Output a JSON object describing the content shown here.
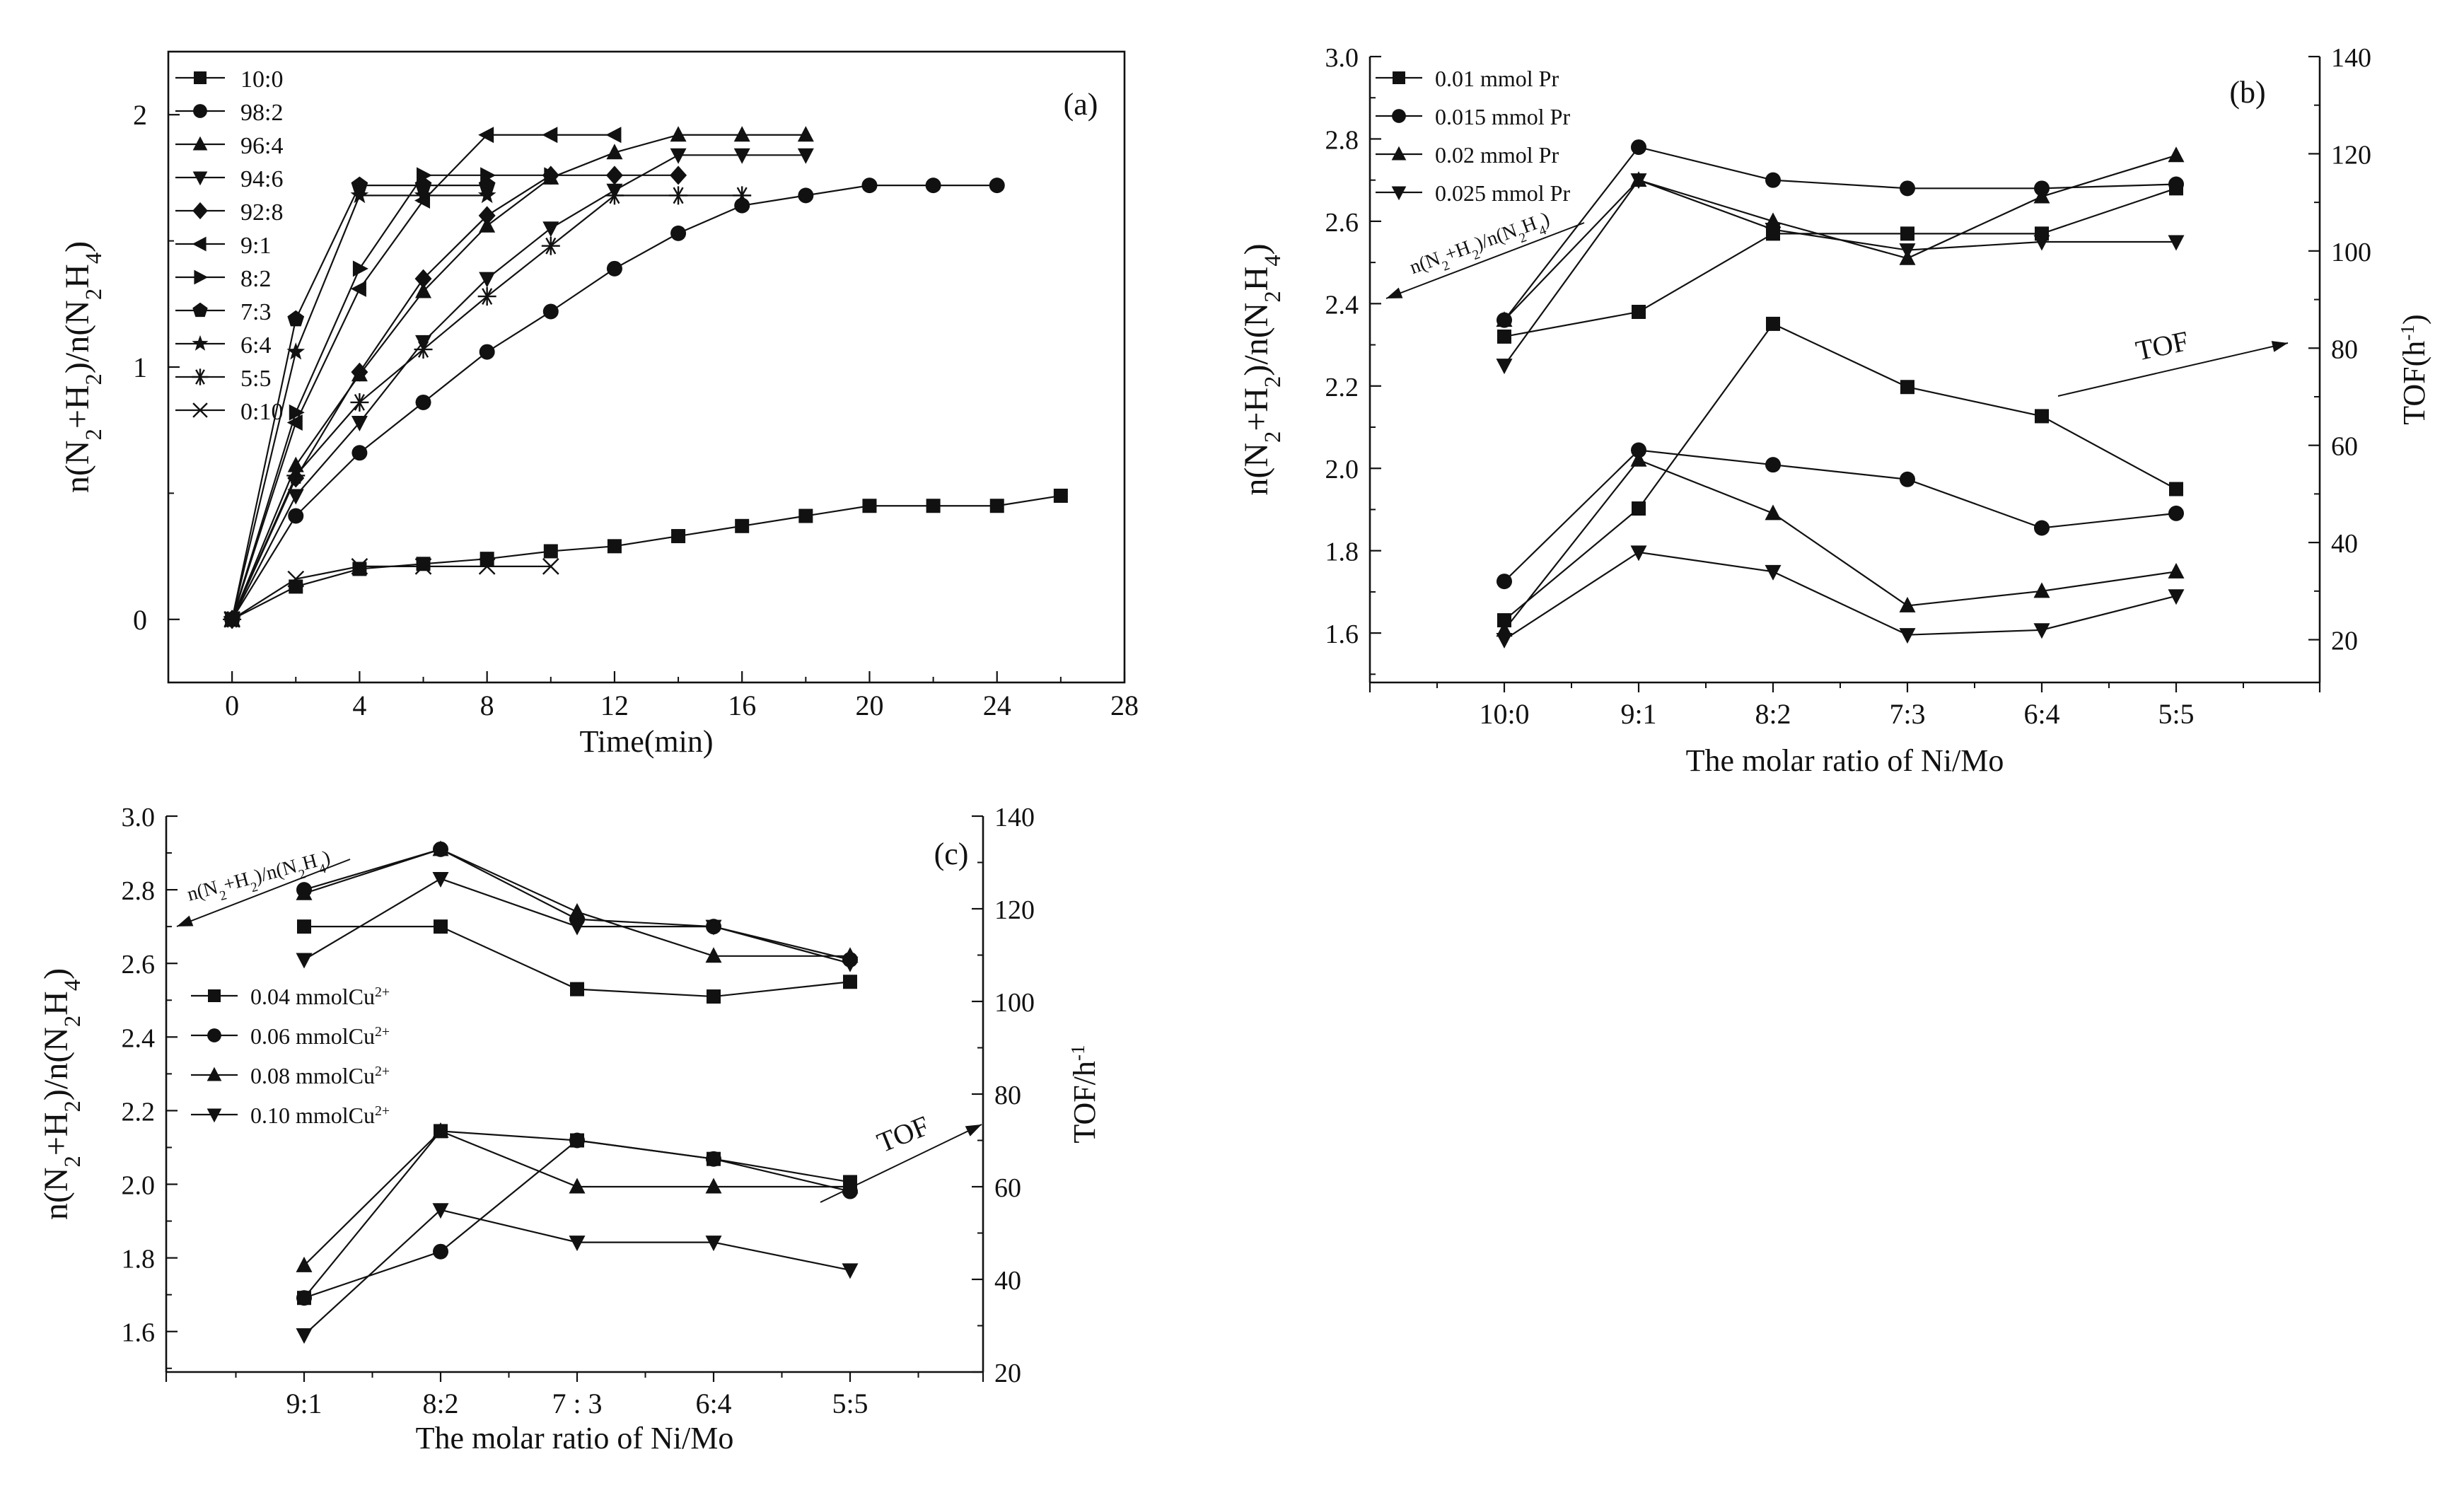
{
  "chart_data": [
    {
      "id": "a",
      "type": "line",
      "panel_label": "(a)",
      "xlabel": "Time(min)",
      "ylabel": "n(N2+H2)/n(N2H4)",
      "xlim": [
        -2,
        28
      ],
      "ylim": [
        -0.25,
        2.25
      ],
      "xticks": [
        0,
        4,
        8,
        12,
        16,
        20,
        24,
        28
      ],
      "yticks": [
        0,
        1,
        2
      ],
      "series": [
        {
          "name": "10:0",
          "marker": "square",
          "points": [
            [
              0,
              0
            ],
            [
              2,
              0.13
            ],
            [
              4,
              0.2
            ],
            [
              6,
              0.22
            ],
            [
              8,
              0.24
            ],
            [
              10,
              0.27
            ],
            [
              12,
              0.29
            ],
            [
              14,
              0.33
            ],
            [
              16,
              0.37
            ],
            [
              18,
              0.41
            ],
            [
              20,
              0.45
            ],
            [
              22,
              0.45
            ],
            [
              24,
              0.45
            ],
            [
              26,
              0.49
            ]
          ]
        },
        {
          "name": "98:2",
          "marker": "circle",
          "points": [
            [
              0,
              0
            ],
            [
              2,
              0.41
            ],
            [
              4,
              0.66
            ],
            [
              6,
              0.86
            ],
            [
              8,
              1.06
            ],
            [
              10,
              1.22
            ],
            [
              12,
              1.39
            ],
            [
              14,
              1.53
            ],
            [
              16,
              1.64
            ],
            [
              18,
              1.68
            ],
            [
              20,
              1.72
            ],
            [
              22,
              1.72
            ],
            [
              24,
              1.72
            ]
          ]
        },
        {
          "name": "96:4",
          "marker": "triangle-up",
          "points": [
            [
              0,
              0
            ],
            [
              2,
              0.61
            ],
            [
              4,
              0.97
            ],
            [
              6,
              1.3
            ],
            [
              8,
              1.56
            ],
            [
              10,
              1.75
            ],
            [
              12,
              1.85
            ],
            [
              14,
              1.92
            ],
            [
              16,
              1.92
            ],
            [
              18,
              1.92
            ]
          ]
        },
        {
          "name": "94:6",
          "marker": "triangle-down",
          "points": [
            [
              0,
              0
            ],
            [
              2,
              0.49
            ],
            [
              4,
              0.78
            ],
            [
              6,
              1.1
            ],
            [
              8,
              1.35
            ],
            [
              10,
              1.55
            ],
            [
              12,
              1.7
            ],
            [
              14,
              1.84
            ],
            [
              16,
              1.84
            ],
            [
              18,
              1.84
            ]
          ]
        },
        {
          "name": "92:8",
          "marker": "diamond",
          "points": [
            [
              0,
              0
            ],
            [
              2,
              0.56
            ],
            [
              4,
              0.98
            ],
            [
              6,
              1.35
            ],
            [
              8,
              1.6
            ],
            [
              10,
              1.76
            ],
            [
              12,
              1.76
            ],
            [
              14,
              1.76
            ]
          ]
        },
        {
          "name": "9:1",
          "marker": "triangle-left",
          "points": [
            [
              0,
              0
            ],
            [
              2,
              0.78
            ],
            [
              4,
              1.31
            ],
            [
              6,
              1.66
            ],
            [
              8,
              1.92
            ],
            [
              10,
              1.92
            ],
            [
              12,
              1.92
            ]
          ]
        },
        {
          "name": "8:2",
          "marker": "triangle-right",
          "points": [
            [
              0,
              0
            ],
            [
              2,
              0.82
            ],
            [
              4,
              1.39
            ],
            [
              6,
              1.76
            ],
            [
              8,
              1.76
            ],
            [
              10,
              1.76
            ]
          ]
        },
        {
          "name": "7:3",
          "marker": "pentagon",
          "points": [
            [
              0,
              0
            ],
            [
              2,
              1.19
            ],
            [
              4,
              1.72
            ],
            [
              6,
              1.72
            ],
            [
              8,
              1.72
            ]
          ]
        },
        {
          "name": "6:4",
          "marker": "star",
          "points": [
            [
              0,
              0
            ],
            [
              2,
              1.06
            ],
            [
              4,
              1.68
            ],
            [
              6,
              1.68
            ],
            [
              8,
              1.68
            ]
          ]
        },
        {
          "name": "5:5",
          "marker": "asterisk",
          "points": [
            [
              0,
              0
            ],
            [
              2,
              0.57
            ],
            [
              4,
              0.86
            ],
            [
              6,
              1.07
            ],
            [
              8,
              1.28
            ],
            [
              10,
              1.48
            ],
            [
              12,
              1.68
            ],
            [
              14,
              1.68
            ],
            [
              16,
              1.68
            ]
          ]
        },
        {
          "name": "0:10",
          "marker": "x",
          "points": [
            [
              0,
              0
            ],
            [
              2,
              0.16
            ],
            [
              4,
              0.21
            ],
            [
              6,
              0.21
            ],
            [
              8,
              0.21
            ],
            [
              10,
              0.21
            ]
          ]
        }
      ]
    },
    {
      "id": "b",
      "type": "line",
      "panel_label": "(b)",
      "xlabel": "The molar ratio of Ni/Mo",
      "ylabel": "n(N2+H2)/n(N2H4)",
      "y2label": "TOF(h-1)",
      "categories": [
        "10:0",
        "9:1",
        "8:2",
        "7:3",
        "6:4",
        "5:5"
      ],
      "ylim": [
        1.48,
        3.0
      ],
      "yticks": [
        1.6,
        1.8,
        2.0,
        2.2,
        2.4,
        2.6,
        2.8,
        3.0
      ],
      "y2lim": [
        11.2,
        140
      ],
      "y2ticks": [
        20,
        40,
        60,
        80,
        100,
        120,
        140
      ],
      "annotations": {
        "left_arrow": "n(N2+H2)/n(N2H4)",
        "right_arrow": "TOF"
      },
      "series": [
        {
          "name": "0.01 mmol Pr",
          "marker": "square",
          "ratio": [
            2.32,
            2.38,
            2.57,
            2.57,
            2.57,
            2.68
          ],
          "tof": [
            24,
            47,
            85,
            72,
            66,
            51
          ]
        },
        {
          "name": "0.015 mmol Pr",
          "marker": "circle",
          "ratio": [
            2.36,
            2.78,
            2.7,
            2.68,
            2.68,
            2.69
          ],
          "tof": [
            32,
            59,
            56,
            53,
            43,
            46
          ]
        },
        {
          "name": "0.02 mmol Pr",
          "marker": "triangle-up",
          "ratio": [
            2.36,
            2.7,
            2.6,
            2.51,
            2.66,
            2.76
          ],
          "tof": [
            22,
            57,
            46,
            27,
            30,
            34
          ]
        },
        {
          "name": "0.025 mmol Pr",
          "marker": "triangle-down",
          "ratio": [
            2.25,
            2.7,
            2.58,
            2.53,
            2.55,
            2.55
          ],
          "tof": [
            20,
            38,
            34,
            21,
            22,
            29
          ]
        }
      ]
    },
    {
      "id": "c",
      "type": "line",
      "panel_label": "(c)",
      "xlabel": "The molar ratio of Ni/Mo",
      "ylabel": "n(N2+H2)/n(N2H4)",
      "y2label": "TOF/h-1",
      "categories": [
        "9:1",
        "8:2",
        "7 : 3",
        "6:4",
        "5:5"
      ],
      "ylim": [
        1.49,
        3.0
      ],
      "yticks": [
        1.6,
        1.8,
        2.0,
        2.2,
        2.4,
        2.6,
        2.8,
        3.0
      ],
      "y2lim": [
        20,
        140
      ],
      "y2ticks": [
        20,
        40,
        60,
        80,
        100,
        120,
        140
      ],
      "annotations": {
        "left_arrow": "n(N2+H2)/n(N2H4)",
        "right_arrow": "TOF"
      },
      "series": [
        {
          "name": "0.04 mmolCu2+",
          "marker": "square",
          "ratio": [
            2.7,
            2.7,
            2.53,
            2.51,
            2.55
          ],
          "tof": [
            36,
            72,
            70,
            66,
            61
          ]
        },
        {
          "name": "0.06 mmolCu2+",
          "marker": "circle",
          "ratio": [
            2.8,
            2.91,
            2.72,
            2.7,
            2.61
          ],
          "tof": [
            36,
            46,
            70,
            66,
            59
          ]
        },
        {
          "name": "0.08 mmolCu2+",
          "marker": "triangle-up",
          "ratio": [
            2.79,
            2.91,
            2.74,
            2.62,
            2.62
          ],
          "tof": [
            43,
            72,
            60,
            60,
            60
          ]
        },
        {
          "name": "0.10 mmolCu2+",
          "marker": "triangle-down",
          "ratio": [
            2.61,
            2.83,
            2.7,
            2.7,
            2.6
          ],
          "tof": [
            28,
            55,
            48,
            48,
            42
          ]
        }
      ]
    }
  ]
}
